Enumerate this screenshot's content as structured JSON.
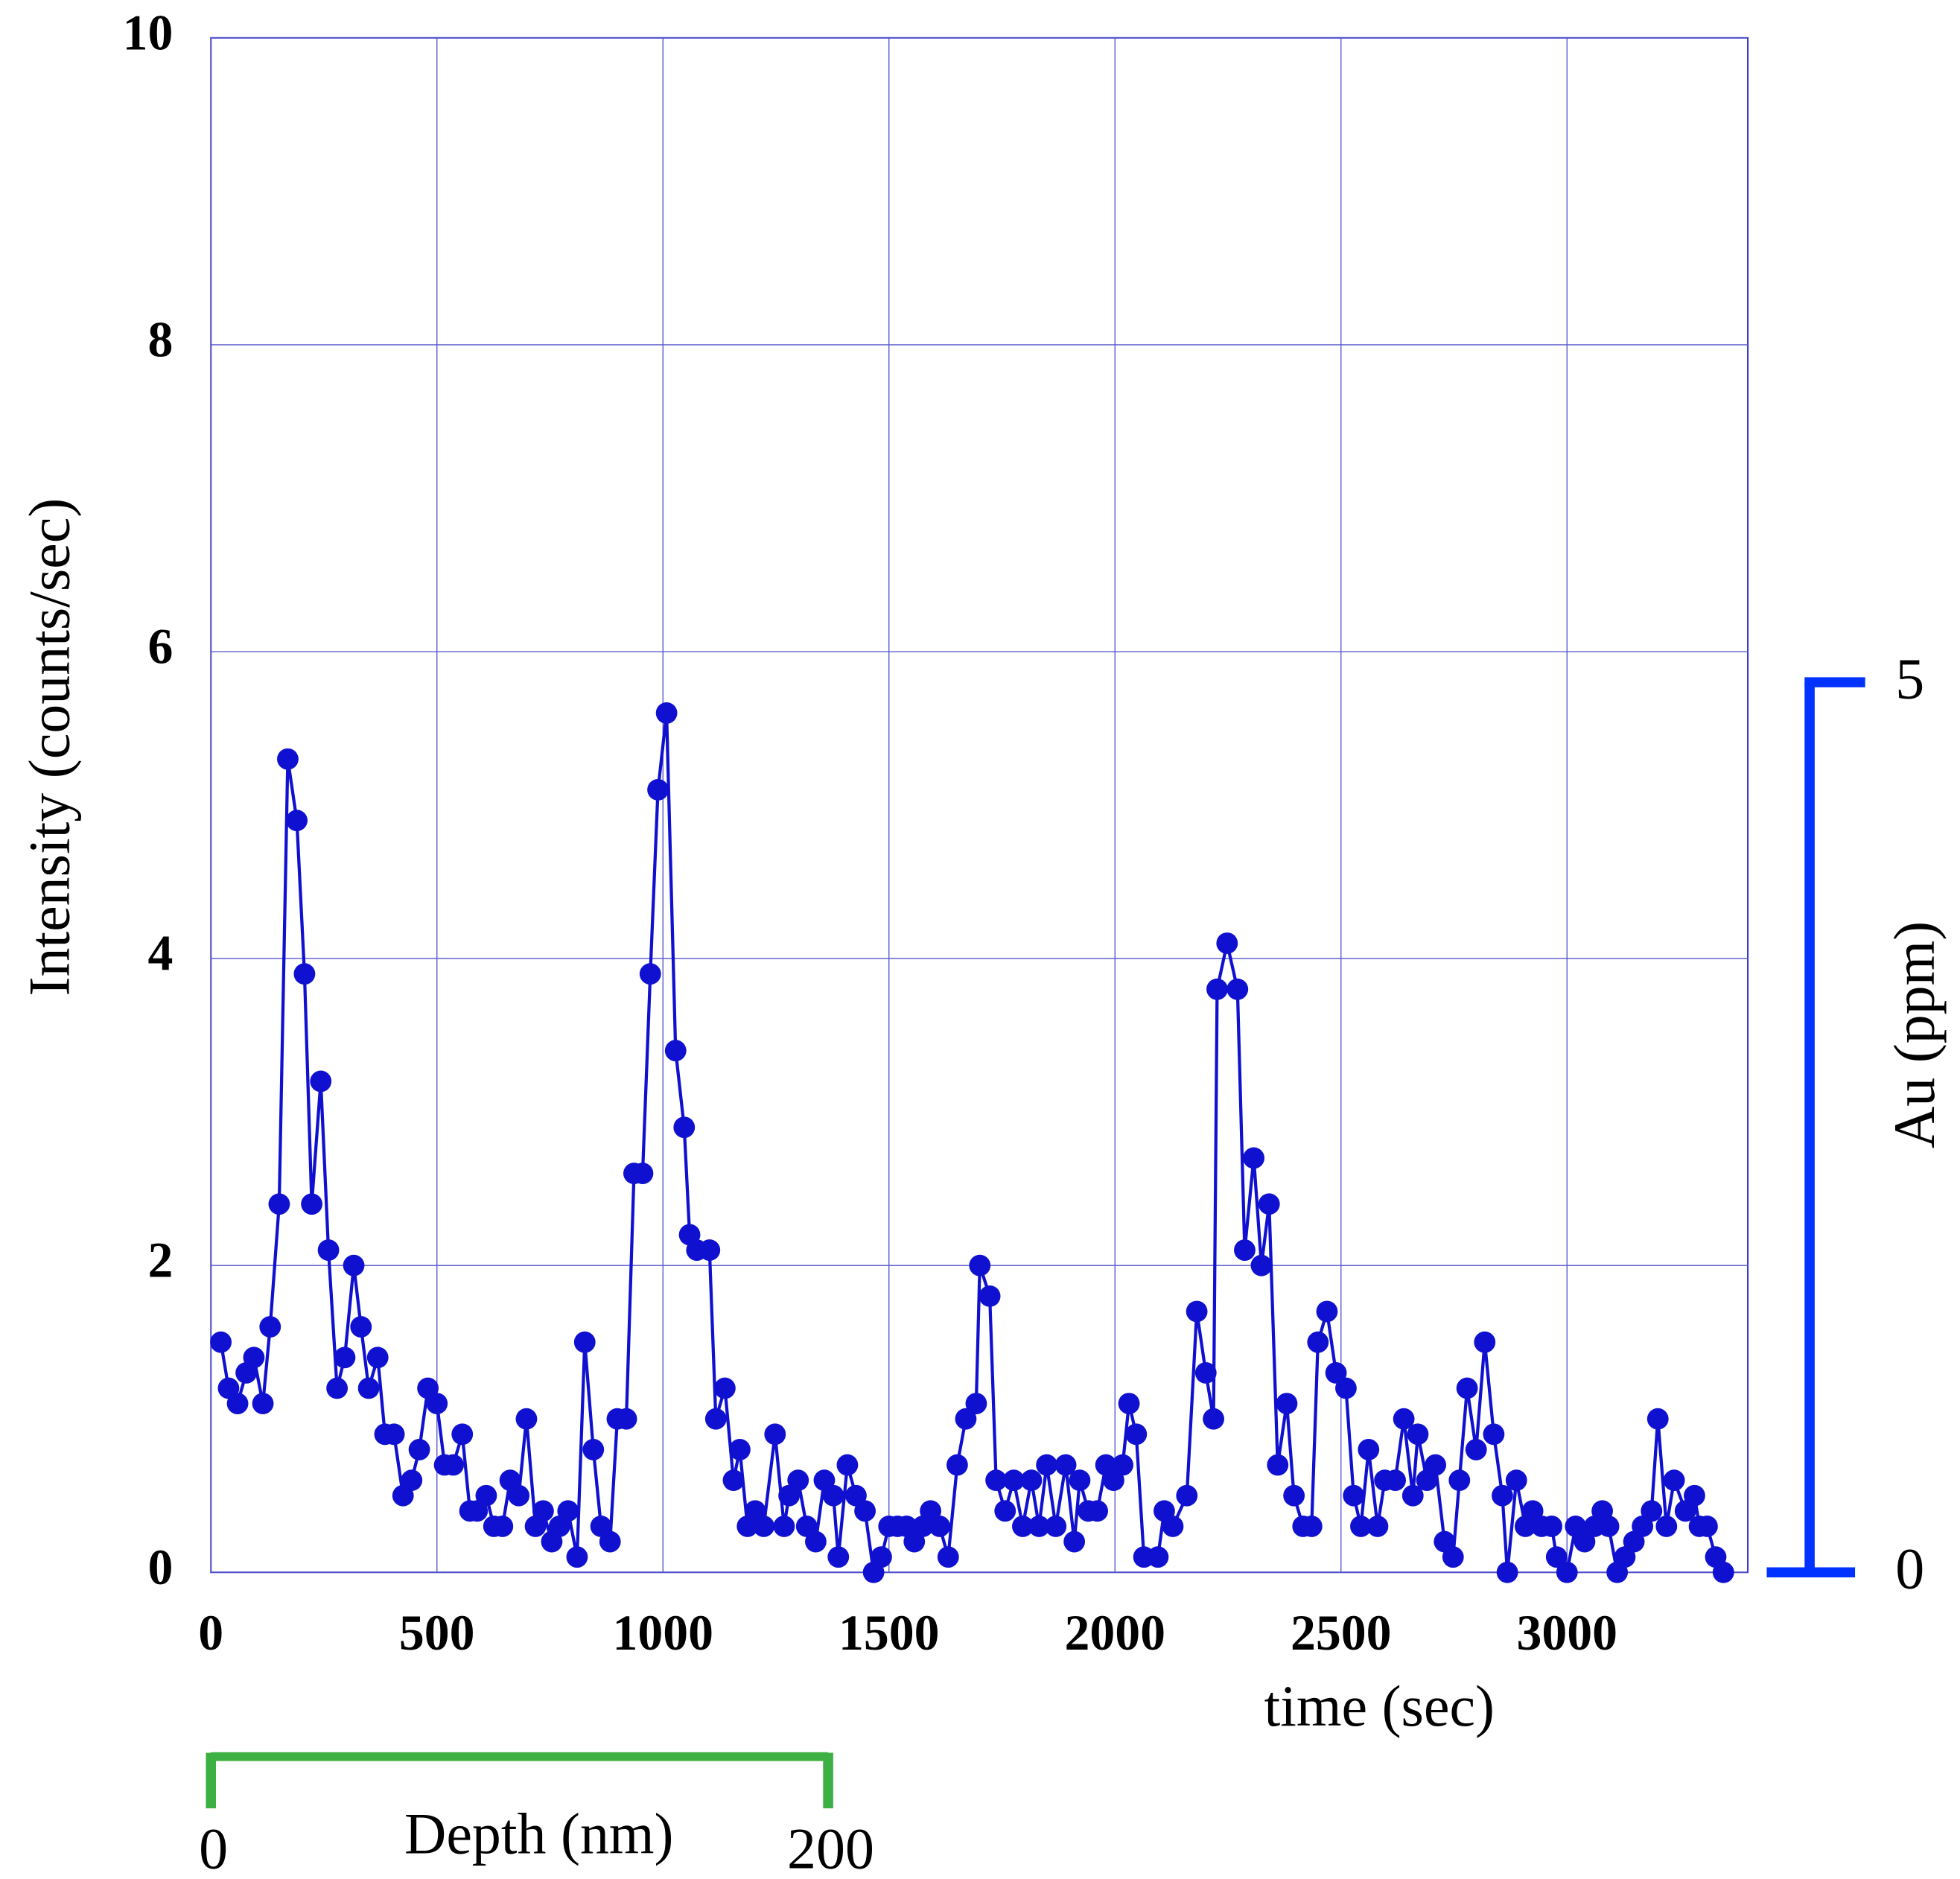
{
  "chart_data": {
    "type": "line",
    "xlabel": "time (sec)",
    "ylabel": "Intensity (counts/sec)",
    "xlim": [
      0,
      3400
    ],
    "ylim": [
      0,
      10
    ],
    "xticks": [
      0,
      500,
      1000,
      1500,
      2000,
      2500,
      3000
    ],
    "yticks": [
      0,
      2,
      4,
      6,
      8,
      10
    ],
    "grid": true,
    "y2label": "Au (ppm)",
    "y2lim": [
      0,
      8.62
    ],
    "y2ticks": [
      0,
      5
    ],
    "y2color": "#0033ff",
    "x2label": "Depth (nm)",
    "x2lim": [
      0,
      498
    ],
    "x2ticks": [
      0,
      200
    ],
    "x2color": "#3cb043",
    "series": [
      {
        "color": "#1010d0",
        "x": [
          22,
          39,
          59,
          78,
          95,
          115,
          131,
          151,
          170,
          190,
          207,
          223,
          243,
          260,
          279,
          296,
          316,
          332,
          349,
          369,
          385,
          405,
          425,
          444,
          461,
          480,
          500,
          517,
          536,
          556,
          573,
          589,
          609,
          626,
          645,
          662,
          681,
          698,
          718,
          735,
          754,
          771,
          790,
          810,
          827,
          846,
          863,
          883,
          899,
          919,
          936,
          955,
          972,
          989,
          1008,
          1028,
          1047,
          1059,
          1075,
          1103,
          1117,
          1137,
          1156,
          1170,
          1187,
          1204,
          1223,
          1248,
          1268,
          1279,
          1299,
          1318,
          1338,
          1357,
          1377,
          1388,
          1408,
          1427,
          1447,
          1466,
          1483,
          1500,
          1519,
          1539,
          1556,
          1575,
          1592,
          1612,
          1631,
          1651,
          1670,
          1693,
          1701,
          1723,
          1737,
          1757,
          1776,
          1796,
          1815,
          1832,
          1849,
          1869,
          1891,
          1910,
          1922,
          1941,
          1961,
          1980,
          1997,
          2017,
          2031,
          2047,
          2064,
          2095,
          2109,
          2128,
          2159,
          2181,
          2201,
          2218,
          2226,
          2248,
          2271,
          2287,
          2307,
          2324,
          2341,
          2360,
          2380,
          2396,
          2416,
          2435,
          2449,
          2469,
          2489,
          2511,
          2528,
          2544,
          2561,
          2581,
          2597,
          2620,
          2639,
          2659,
          2670,
          2690,
          2709,
          2729,
          2748,
          2762,
          2779,
          2799,
          2818,
          2838,
          2857,
          2868,
          2888,
          2908,
          2924,
          2944,
          2966,
          2977,
          3000,
          3019,
          3039,
          3061,
          3078,
          3092,
          3111,
          3128,
          3148,
          3167,
          3187,
          3201,
          3220,
          3237,
          3262,
          3282,
          3293,
          3310,
          3329,
          3346
        ],
        "values": [
          1.5,
          1.2,
          1.1,
          1.3,
          1.4,
          1.1,
          1.6,
          2.4,
          5.3,
          4.9,
          3.9,
          2.4,
          3.2,
          2.1,
          1.2,
          1.4,
          2.0,
          1.6,
          1.2,
          1.4,
          0.9,
          0.9,
          0.5,
          0.6,
          0.8,
          1.2,
          1.1,
          0.7,
          0.7,
          0.9,
          0.4,
          0.4,
          0.5,
          0.3,
          0.3,
          0.6,
          0.5,
          1.0,
          0.3,
          0.4,
          0.2,
          0.3,
          0.4,
          0.1,
          1.5,
          0.8,
          0.3,
          0.2,
          1.0,
          1.0,
          2.6,
          2.6,
          3.9,
          5.1,
          5.6,
          3.4,
          2.9,
          2.2,
          2.1,
          2.1,
          1.0,
          1.2,
          0.6,
          0.8,
          0.3,
          0.4,
          0.3,
          0.9,
          0.3,
          0.5,
          0.6,
          0.3,
          0.2,
          0.6,
          0.5,
          0.1,
          0.7,
          0.5,
          0.4,
          0.0,
          0.1,
          0.3,
          0.3,
          0.3,
          0.2,
          0.3,
          0.4,
          0.3,
          0.1,
          0.7,
          1.0,
          1.1,
          2.0,
          1.8,
          0.6,
          0.4,
          0.6,
          0.3,
          0.6,
          0.3,
          0.7,
          0.3,
          0.7,
          0.2,
          0.6,
          0.4,
          0.4,
          0.7,
          0.6,
          0.7,
          1.1,
          0.9,
          0.1,
          0.1,
          0.4,
          0.3,
          0.5,
          1.7,
          1.3,
          1.0,
          3.8,
          4.1,
          3.8,
          2.1,
          2.7,
          2.0,
          2.4,
          0.7,
          1.1,
          0.5,
          0.3,
          0.3,
          1.5,
          1.7,
          1.3,
          1.2,
          0.5,
          0.3,
          0.8,
          0.3,
          0.6,
          0.6,
          1.0,
          0.5,
          0.9,
          0.6,
          0.7,
          0.2,
          0.1,
          0.6,
          1.2,
          0.8,
          1.5,
          0.9,
          0.5,
          0.0,
          0.6,
          0.3,
          0.4,
          0.3,
          0.3,
          0.1,
          0.0,
          0.3,
          0.2,
          0.3,
          0.4,
          0.3,
          0.0,
          0.1,
          0.2,
          0.3,
          0.4,
          1.0,
          0.3,
          0.6,
          0.4,
          0.5,
          0.3,
          0.3,
          0.1,
          0.0
        ]
      }
    ]
  }
}
